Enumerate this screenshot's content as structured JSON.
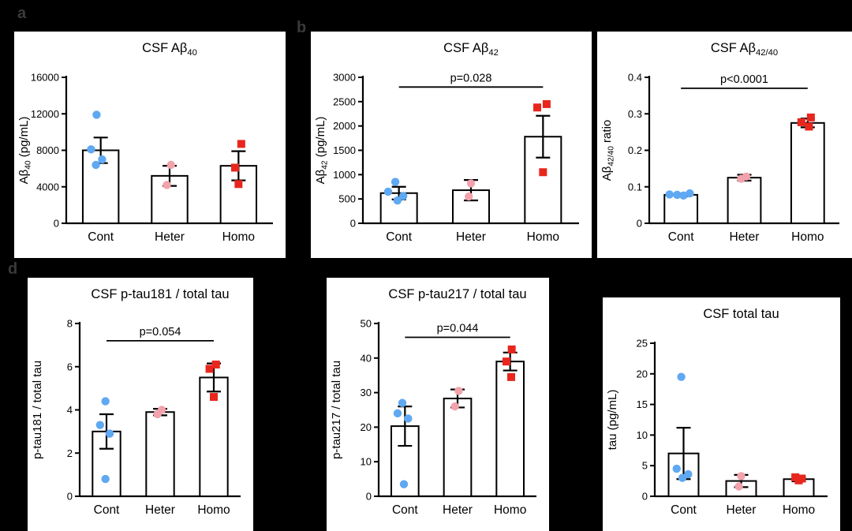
{
  "figure_labels": {
    "a": "a",
    "b": "b",
    "d": "d"
  },
  "style": {
    "background": "#000000",
    "panel_bg": "#ffffff",
    "axis_color": "#000000",
    "bar_fill": "#ffffff",
    "bar_stroke": "#000000",
    "group_colors": {
      "Cont": "#5FA8F2",
      "Heter": "#F2A2AC",
      "Homo": "#E8261D"
    },
    "group_markers": {
      "Cont": "circle",
      "Heter": "circle",
      "Homo": "square"
    }
  },
  "chart_data": [
    {
      "type": "bar",
      "title_segments": [
        [
          "CSF Aβ",
          false
        ],
        [
          "40",
          true
        ]
      ],
      "ylabel_segments": [
        [
          "Aβ",
          false
        ],
        [
          "40",
          true
        ],
        [
          " (pg/mL)",
          false
        ]
      ],
      "categories": [
        "Cont",
        "Heter",
        "Homo"
      ],
      "values": [
        8000,
        5200,
        6300
      ],
      "errors": [
        1400,
        1100,
        1600
      ],
      "ylim": [
        0,
        16000
      ],
      "yticks": [
        0,
        4000,
        8000,
        12000,
        16000
      ],
      "points": {
        "Cont": [
          [
            11900,
            -0.06
          ],
          [
            8100,
            -0.14
          ],
          [
            7000,
            0.02
          ],
          [
            6400,
            -0.07
          ]
        ],
        "Heter": [
          [
            6400,
            0.02
          ],
          [
            4200,
            -0.04
          ]
        ],
        "Homo": [
          [
            8700,
            0.04
          ],
          [
            6100,
            -0.05
          ],
          [
            4300,
            0.0
          ]
        ]
      },
      "significance": null
    },
    {
      "type": "bar",
      "title_segments": [
        [
          "CSF Aβ",
          false
        ],
        [
          "42",
          true
        ]
      ],
      "ylabel_segments": [
        [
          "Aβ",
          false
        ],
        [
          "42",
          true
        ],
        [
          " (pg/mL)",
          false
        ]
      ],
      "categories": [
        "Cont",
        "Heter",
        "Homo"
      ],
      "values": [
        620,
        680,
        1780
      ],
      "errors": [
        130,
        210,
        430
      ],
      "ylim": [
        0,
        3000
      ],
      "yticks": [
        0,
        500,
        1000,
        1500,
        2000,
        2500,
        3000
      ],
      "points": {
        "Cont": [
          [
            850,
            -0.05
          ],
          [
            650,
            -0.15
          ],
          [
            560,
            0.06
          ],
          [
            470,
            -0.02
          ]
        ],
        "Heter": [
          [
            820,
            0.0
          ],
          [
            550,
            -0.03
          ]
        ],
        "Homo": [
          [
            2450,
            0.05
          ],
          [
            2380,
            -0.08
          ],
          [
            1050,
            0.0
          ]
        ]
      },
      "significance": {
        "label": "p=0.028",
        "y": 2800
      }
    },
    {
      "type": "bar",
      "title_segments": [
        [
          "CSF Aβ",
          false
        ],
        [
          "42/40",
          true
        ]
      ],
      "ylabel_segments": [
        [
          "Aβ",
          false
        ],
        [
          "42/40",
          true
        ],
        [
          " ratio",
          false
        ]
      ],
      "categories": [
        "Cont",
        "Heter",
        "Homo"
      ],
      "values": [
        0.078,
        0.125,
        0.275
      ],
      "errors": [
        0.004,
        0.008,
        0.012
      ],
      "ylim": [
        0,
        0.4
      ],
      "yticks": [
        0,
        0.1,
        0.2,
        0.3,
        0.4
      ],
      "points": {
        "Cont": [
          [
            0.082,
            0.14
          ],
          [
            0.079,
            -0.18
          ],
          [
            0.078,
            -0.06
          ],
          [
            0.076,
            0.04
          ]
        ],
        "Heter": [
          [
            0.128,
            0.03
          ],
          [
            0.122,
            -0.05
          ]
        ],
        "Homo": [
          [
            0.29,
            0.05
          ],
          [
            0.277,
            -0.1
          ],
          [
            0.265,
            0.02
          ]
        ]
      },
      "significance": {
        "label": "p<0.0001",
        "y": 0.37
      }
    },
    {
      "type": "bar",
      "title_segments": [
        [
          "CSF p-tau181 / total tau",
          false
        ]
      ],
      "ylabel_segments": [
        [
          "p-tau181 / total tau",
          false
        ]
      ],
      "categories": [
        "Cont",
        "Heter",
        "Homo"
      ],
      "values": [
        3.0,
        3.9,
        5.5
      ],
      "errors": [
        0.8,
        0.15,
        0.65
      ],
      "ylim": [
        0,
        8
      ],
      "yticks": [
        0,
        2,
        4,
        6,
        8
      ],
      "points": {
        "Cont": [
          [
            4.4,
            -0.02
          ],
          [
            3.3,
            -0.12
          ],
          [
            2.9,
            0.06
          ],
          [
            0.8,
            -0.02
          ]
        ],
        "Heter": [
          [
            4.0,
            0.03
          ],
          [
            3.8,
            -0.05
          ]
        ],
        "Homo": [
          [
            6.1,
            0.04
          ],
          [
            5.9,
            -0.08
          ],
          [
            4.6,
            0.0
          ]
        ]
      },
      "significance": {
        "label": "p=0.054",
        "y": 7.2
      }
    },
    {
      "type": "bar",
      "title_segments": [
        [
          "CSF p-tau217 / total tau",
          false
        ]
      ],
      "ylabel_segments": [
        [
          "p-tau217 / total tau",
          false
        ]
      ],
      "categories": [
        "Cont",
        "Heter",
        "Homo"
      ],
      "values": [
        20.3,
        28.3,
        39.0
      ],
      "errors": [
        5.7,
        2.6,
        2.6
      ],
      "ylim": [
        0,
        50
      ],
      "yticks": [
        0,
        10,
        20,
        30,
        40,
        50
      ],
      "points": {
        "Cont": [
          [
            27,
            -0.05
          ],
          [
            24,
            -0.14
          ],
          [
            22.5,
            0.06
          ],
          [
            3.5,
            -0.02
          ]
        ],
        "Heter": [
          [
            30.5,
            0.02
          ],
          [
            26,
            -0.05
          ]
        ],
        "Homo": [
          [
            42.5,
            0.03
          ],
          [
            39,
            -0.07
          ],
          [
            34.5,
            0.02
          ]
        ]
      },
      "significance": {
        "label": "p=0.044",
        "y": 46
      }
    },
    {
      "type": "bar",
      "title_segments": [
        [
          "CSF total tau",
          false
        ]
      ],
      "ylabel_segments": [
        [
          "tau (pg/mL)",
          false
        ]
      ],
      "categories": [
        "Cont",
        "Heter",
        "Homo"
      ],
      "values": [
        7.0,
        2.5,
        2.8
      ],
      "errors": [
        4.2,
        1.0,
        0.35
      ],
      "ylim": [
        0,
        25
      ],
      "yticks": [
        0,
        5,
        10,
        15,
        20,
        25
      ],
      "points": {
        "Cont": [
          [
            19.5,
            -0.04
          ],
          [
            4.5,
            -0.12
          ],
          [
            3.6,
            0.08
          ],
          [
            3.0,
            -0.02
          ]
        ],
        "Heter": [
          [
            3.3,
            0.0
          ],
          [
            1.6,
            -0.04
          ]
        ],
        "Homo": [
          [
            3.1,
            -0.06
          ],
          [
            2.9,
            0.05
          ],
          [
            2.6,
            0.0
          ]
        ]
      },
      "significance": null
    }
  ]
}
